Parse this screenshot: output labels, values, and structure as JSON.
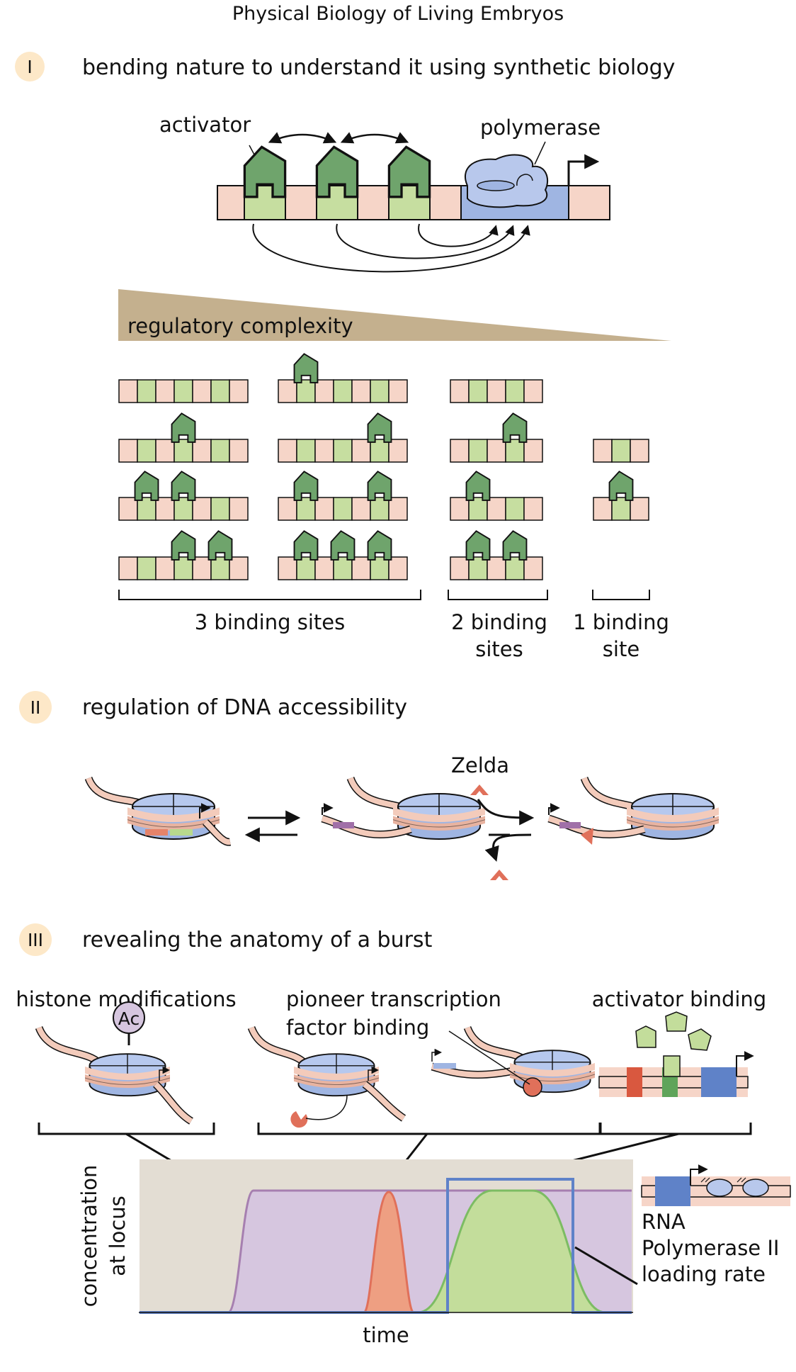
{
  "title": "Physical Biology of Living Embryos",
  "sections": [
    {
      "numeral": "I",
      "heading": "bending nature to understand it using synthetic biology"
    },
    {
      "numeral": "II",
      "heading": "regulation of DNA accessibility"
    },
    {
      "numeral": "III",
      "heading": "revealing the anatomy of a burst"
    }
  ],
  "panel1": {
    "activator_label": "activator",
    "polymerase_label": "polymerase",
    "complexity_label": "regulatory complexity",
    "groups": {
      "three": {
        "line1": "3 binding sites",
        "line2": ""
      },
      "two": {
        "line1": "2 binding",
        "line2": "sites"
      },
      "one": {
        "line1": "1 binding",
        "line2": "site"
      }
    }
  },
  "panel2": {
    "zelda_label": "Zelda"
  },
  "panel3": {
    "histone_label": "histone modifications",
    "ac_label": "Ac",
    "pioneer_label_line1": "pioneer transcription",
    "pioneer_label_line2": "factor binding",
    "activator_binding_label": "activator binding",
    "ylabel_line1": "concentration",
    "ylabel_line2": "at locus",
    "xlabel": "time",
    "rna_line1": "RNA",
    "rna_line2": "Polymerase II",
    "rna_line3": "loading rate"
  },
  "colors": {
    "dna_pink": "#f6d5c8",
    "site_green": "#c6dea0",
    "activator_green": "#6fa46c",
    "polymerase_blue": "#b8c8ec",
    "promoter_blue": "#9fb5e2",
    "complexity_tan": "#c4b08e",
    "numeral_bg": "#fde8c8",
    "plot_bg": "#e3ddd3",
    "histone_purple": "#d6c6df",
    "pioneer_orange": "#ee9f82",
    "activator_fill": "#c3dd9b",
    "polII_line": "#5f82c8"
  }
}
